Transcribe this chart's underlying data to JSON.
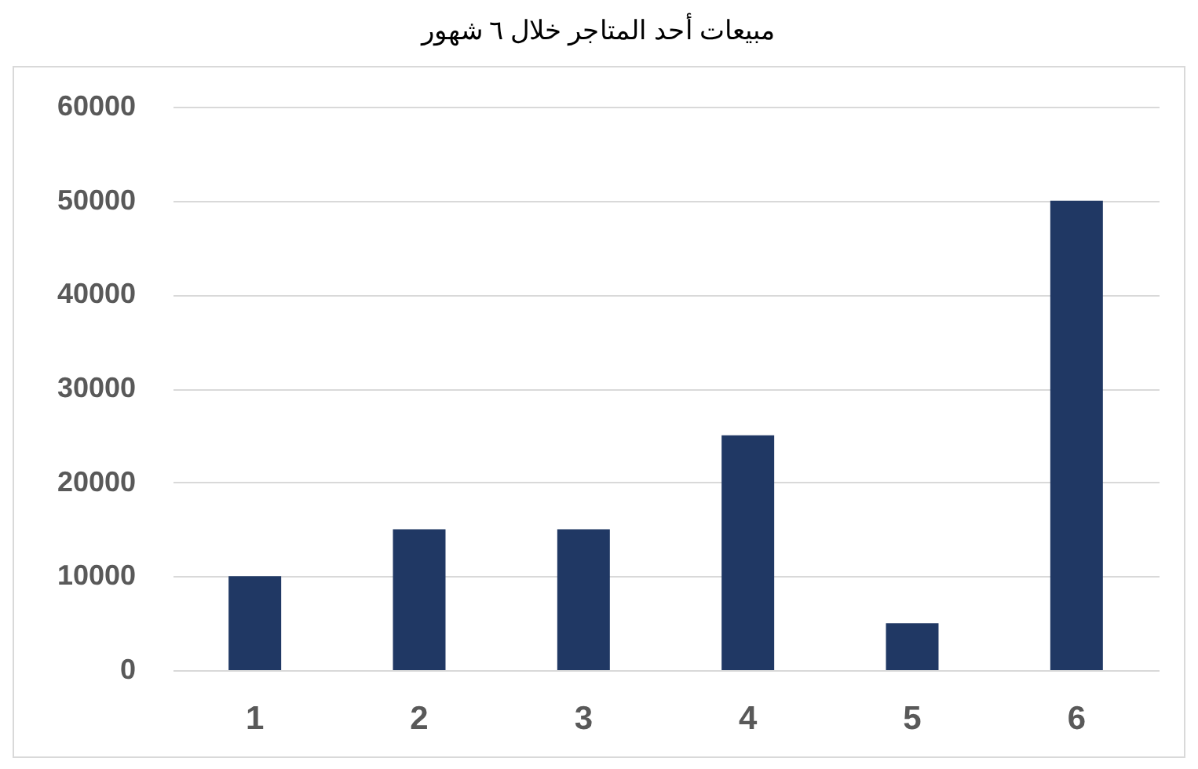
{
  "chart_data": {
    "type": "bar",
    "title": "مبيعات أحد المتاجر خلال ٦ شهور",
    "categories": [
      "1",
      "2",
      "3",
      "4",
      "5",
      "6"
    ],
    "values": [
      10000,
      15000,
      15000,
      25000,
      5000,
      50000
    ],
    "color": "#203864",
    "ylim": [
      0,
      60000
    ],
    "yticks": [
      0,
      10000,
      20000,
      30000,
      40000,
      50000,
      60000
    ],
    "grid": true
  }
}
